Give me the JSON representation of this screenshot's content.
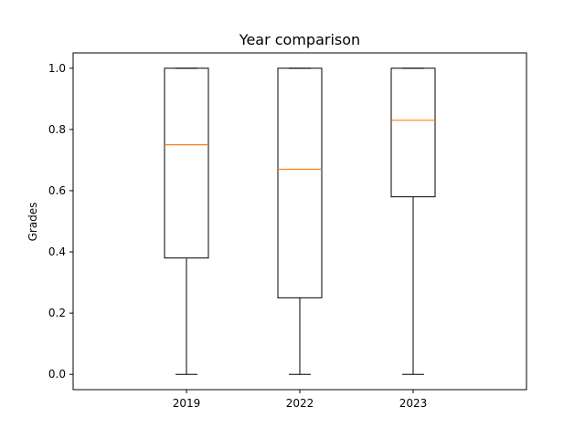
{
  "chart_data": {
    "type": "box",
    "title": "Year comparison",
    "xlabel": "",
    "ylabel": "Grades",
    "categories": [
      "2019",
      "2022",
      "2023"
    ],
    "boxes": [
      {
        "label": "2019",
        "whislo": 0.0,
        "q1": 0.38,
        "med": 0.75,
        "q3": 1.0,
        "whishi": 1.0
      },
      {
        "label": "2022",
        "whislo": 0.0,
        "q1": 0.25,
        "med": 0.67,
        "q3": 1.0,
        "whishi": 1.0
      },
      {
        "label": "2023",
        "whislo": 0.0,
        "q1": 0.58,
        "med": 0.83,
        "q3": 1.0,
        "whishi": 1.0
      }
    ],
    "ylim": [
      -0.05,
      1.05
    ],
    "yticks": [
      0.0,
      0.2,
      0.4,
      0.6,
      0.8,
      1.0
    ],
    "ytick_labels": [
      "0.0",
      "0.2",
      "0.4",
      "0.6",
      "0.8",
      "1.0"
    ],
    "grid": false,
    "colors": {
      "box": "#000000",
      "median": "#ff7f0e",
      "whisker": "#000000"
    }
  }
}
